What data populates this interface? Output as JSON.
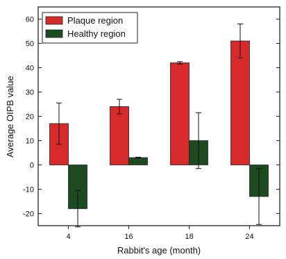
{
  "chart_data": {
    "type": "bar",
    "categories": [
      "4",
      "16",
      "18",
      "24"
    ],
    "series": [
      {
        "name": "Plaque region",
        "values": [
          17,
          24,
          42,
          51
        ],
        "errors": [
          8.5,
          3,
          0.5,
          7
        ],
        "color": "#d7282a"
      },
      {
        "name": "Healthy region",
        "values": [
          -18,
          3,
          10,
          -13
        ],
        "errors": [
          7.5,
          0.2,
          11.5,
          11.5
        ],
        "color": "#1d4a1f"
      }
    ],
    "xlabel": "Rabbit's age (month)",
    "ylabel": "Average OIPB value",
    "ylim": [
      -25,
      65
    ],
    "yticks": [
      -20,
      -10,
      0,
      10,
      20,
      30,
      40,
      50,
      60
    ],
    "legend_position": "top-left",
    "grid": false
  }
}
